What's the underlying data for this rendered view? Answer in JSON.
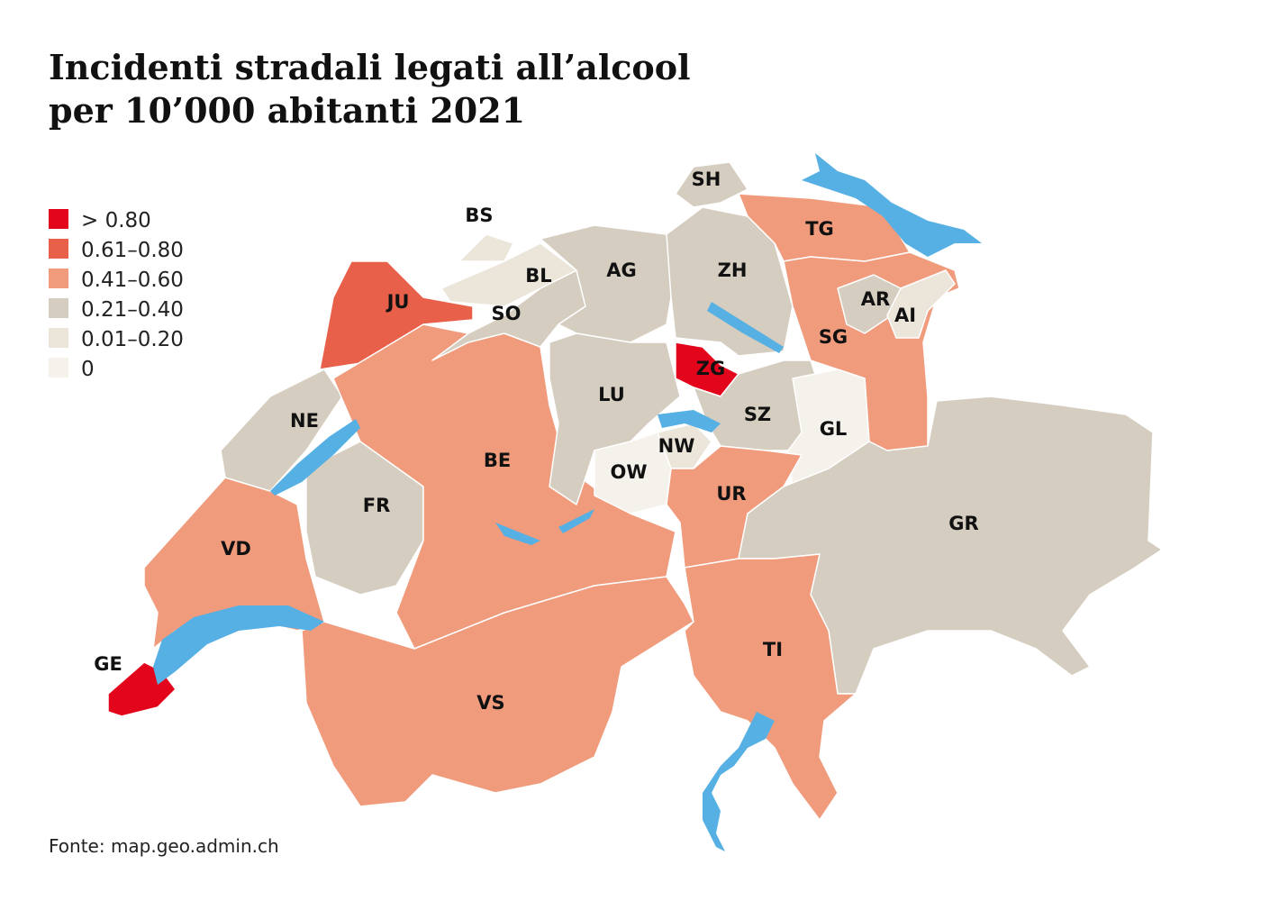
{
  "title": [
    "Incidenti stradali legati all’alcool",
    "per 10’000 abitanti 2021"
  ],
  "legend": [
    {
      "label": "> 0.80",
      "color": "#e3051b"
    },
    {
      "label": "0.61–0.80",
      "color": "#e8604a"
    },
    {
      "label": "0.41–0.60",
      "color": "#f19b7d"
    },
    {
      "label": "0.21–0.40",
      "color": "#d5cdbf"
    },
    {
      "label": "0.01–0.20",
      "color": "#ebe5da"
    },
    {
      "label": "0",
      "color": "#f5f1eb"
    }
  ],
  "regions": [
    {
      "label": "GE",
      "color": "#e3051b"
    },
    {
      "label": "VD",
      "color": "#f19b7d"
    },
    {
      "label": "NE",
      "color": "#d5cdbf"
    },
    {
      "label": "FR",
      "color": "#d5cdbf"
    },
    {
      "label": "JU",
      "color": "#e8604a"
    },
    {
      "label": "BE",
      "color": "#f19b7d"
    },
    {
      "label": "VS",
      "color": "#f19b7d"
    },
    {
      "label": "SO",
      "color": "#d5cdbf"
    },
    {
      "label": "BL",
      "color": "#ebe5da"
    },
    {
      "label": "BS",
      "color": "#ebe5da"
    },
    {
      "label": "AG",
      "color": "#d5cdbf"
    },
    {
      "label": "ZH",
      "color": "#d5cdbf"
    },
    {
      "label": "SH",
      "color": "#d5cdbf"
    },
    {
      "label": "TG",
      "color": "#f19b7d"
    },
    {
      "label": "SG",
      "color": "#f19b7d"
    },
    {
      "label": "AR",
      "color": "#d5cdbf"
    },
    {
      "label": "AI",
      "color": "#ebe5da"
    },
    {
      "label": "LU",
      "color": "#d5cdbf"
    },
    {
      "label": "ZG",
      "color": "#e3051b"
    },
    {
      "label": "SZ",
      "color": "#d5cdbf"
    },
    {
      "label": "GL",
      "color": "#f5f1eb"
    },
    {
      "label": "NW",
      "color": "#ebe5da"
    },
    {
      "label": "OW",
      "color": "#f5f1eb"
    },
    {
      "label": "UR",
      "color": "#f19b7d"
    },
    {
      "label": "GR",
      "color": "#d5cdbf"
    },
    {
      "label": "TI",
      "color": "#f19b7d"
    }
  ],
  "source": "Fonte: map.geo.admin.ch"
}
